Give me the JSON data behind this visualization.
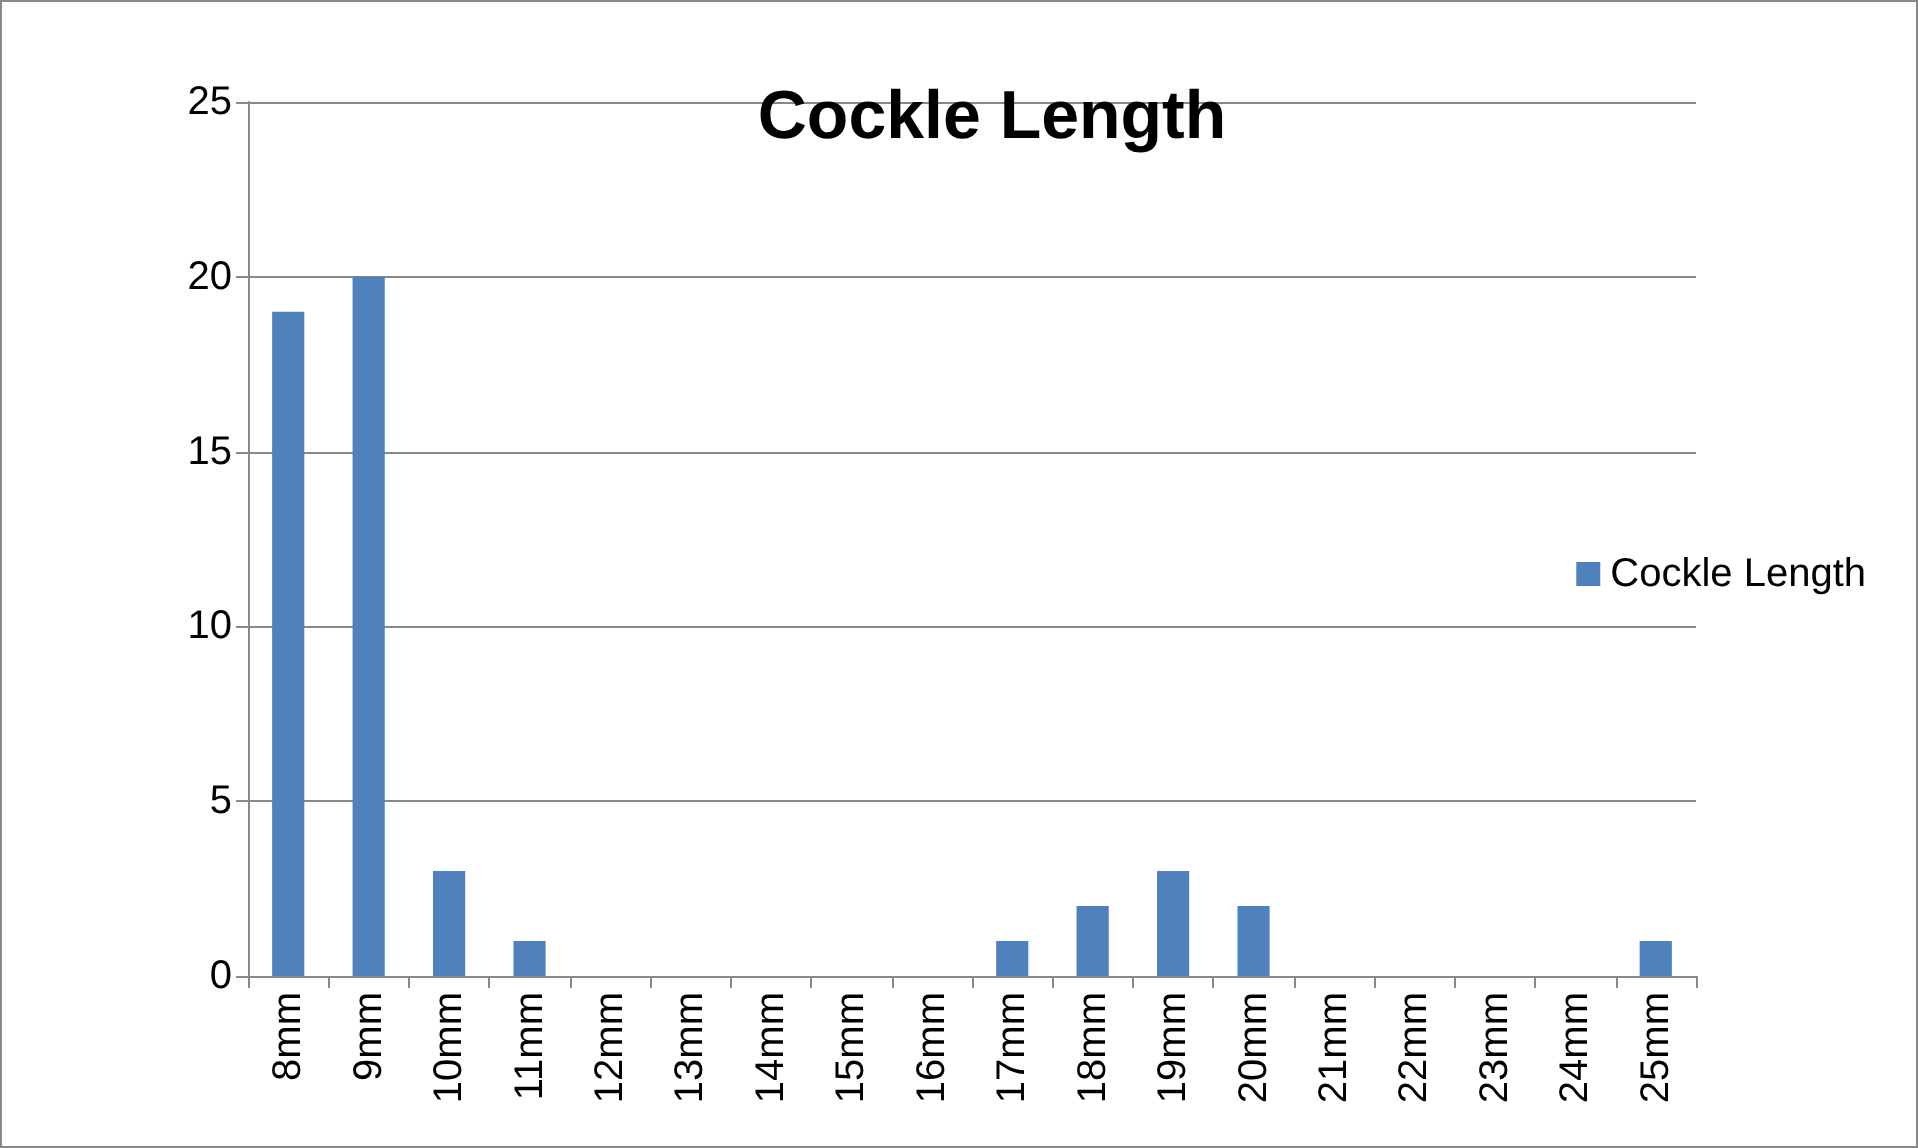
{
  "chart_data": {
    "type": "bar",
    "title": "Cockle Length",
    "categories": [
      "8mm",
      "9mm",
      "10mm",
      "11mm",
      "12mm",
      "13mm",
      "14mm",
      "15mm",
      "16mm",
      "17mm",
      "18mm",
      "19mm",
      "20mm",
      "21mm",
      "22mm",
      "23mm",
      "24mm",
      "25mm"
    ],
    "series": [
      {
        "name": "Cockle Length",
        "color": "#4f81bd",
        "values": [
          19,
          20,
          3,
          1,
          0,
          0,
          0,
          0,
          0,
          1,
          2,
          3,
          2,
          0,
          0,
          0,
          0,
          1
        ]
      }
    ],
    "ylim": [
      0,
      25
    ],
    "yticks": [
      0,
      5,
      10,
      15,
      20,
      25
    ],
    "grid": "y",
    "legend": "right"
  }
}
